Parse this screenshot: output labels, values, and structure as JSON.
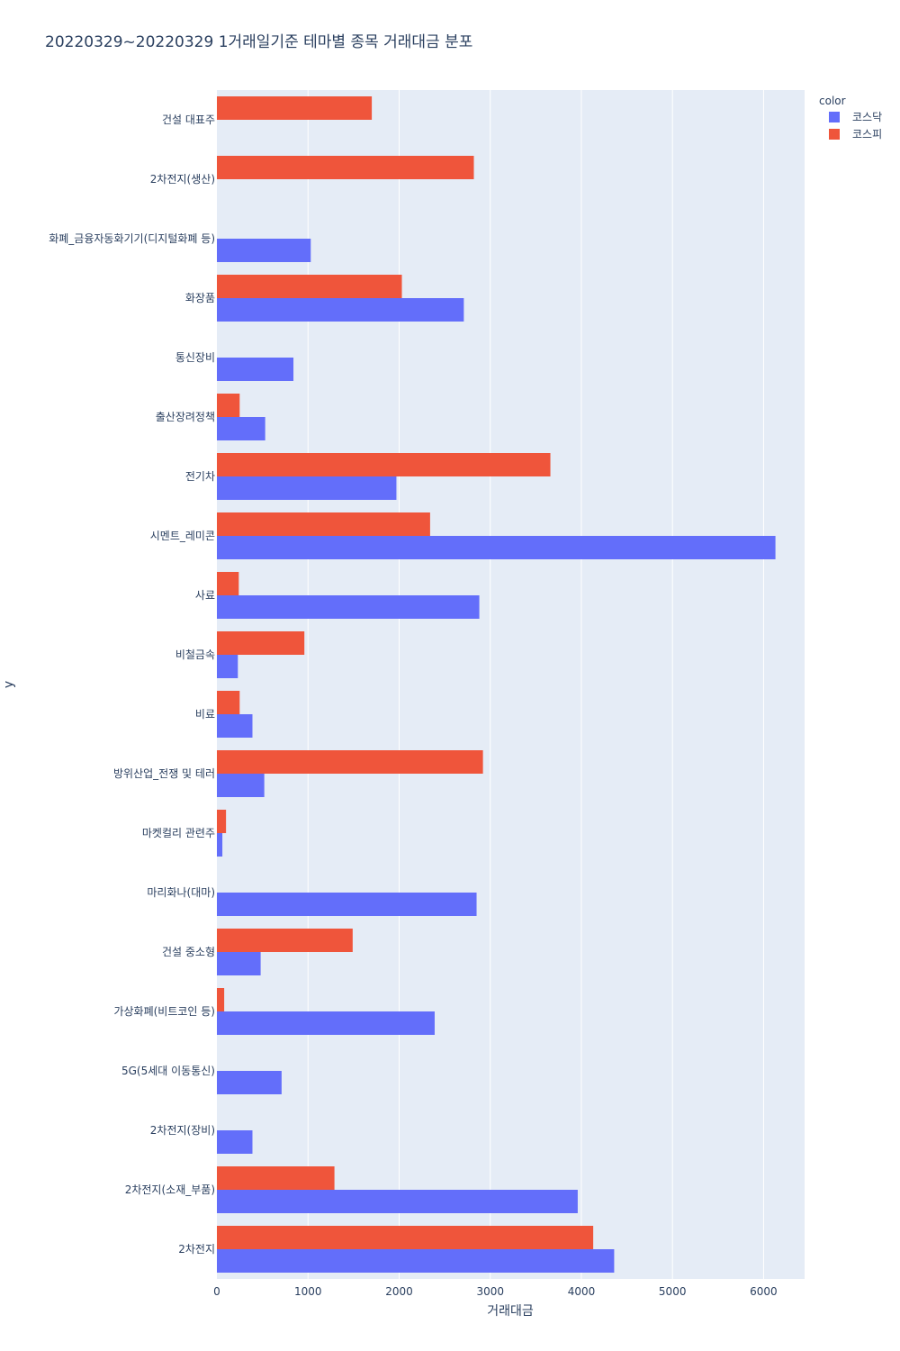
{
  "chart_data": {
    "type": "bar",
    "orientation": "horizontal",
    "title": "20220329~20220329 1거래일기준 테마별 종목 거래대금 분포",
    "xlabel": "거래대금",
    "ylabel": "y",
    "xlim": [
      0,
      6450
    ],
    "xticks": [
      0,
      1000,
      2000,
      3000,
      4000,
      5000,
      6000
    ],
    "xtick_labels": [
      "0",
      "1000",
      "2000",
      "3000",
      "4000",
      "5000",
      "6000"
    ],
    "grid": true,
    "legend": {
      "title": "color",
      "position": "top-right"
    },
    "categories": [
      "2차전지",
      "2차전지(소재_부품)",
      "2차전지(장비)",
      "5G(5세대 이동통신)",
      "가상화폐(비트코인 등)",
      "건설 중소형",
      "마리화나(대마)",
      "마켓컬리 관련주",
      "방위산업_전쟁 및 테러",
      "비료",
      "비철금속",
      "사료",
      "시멘트_레미콘",
      "전기차",
      "출산장려정책",
      "통신장비",
      "화장품",
      "화폐_금융자동화기기(디지털화폐 등)",
      "2차전지(생산)",
      "건설 대표주"
    ],
    "series": [
      {
        "name": "코스닥",
        "color": "#636efa",
        "values": [
          4360,
          3960,
          390,
          710,
          2390,
          480,
          2850,
          60,
          520,
          390,
          230,
          2880,
          6130,
          1970,
          530,
          840,
          2710,
          1030,
          null,
          null
        ]
      },
      {
        "name": "코스피",
        "color": "#ef553b",
        "values": [
          4130,
          1290,
          null,
          null,
          80,
          1490,
          null,
          100,
          2920,
          250,
          960,
          240,
          2340,
          3660,
          250,
          null,
          2030,
          null,
          2820,
          1700
        ]
      }
    ]
  }
}
